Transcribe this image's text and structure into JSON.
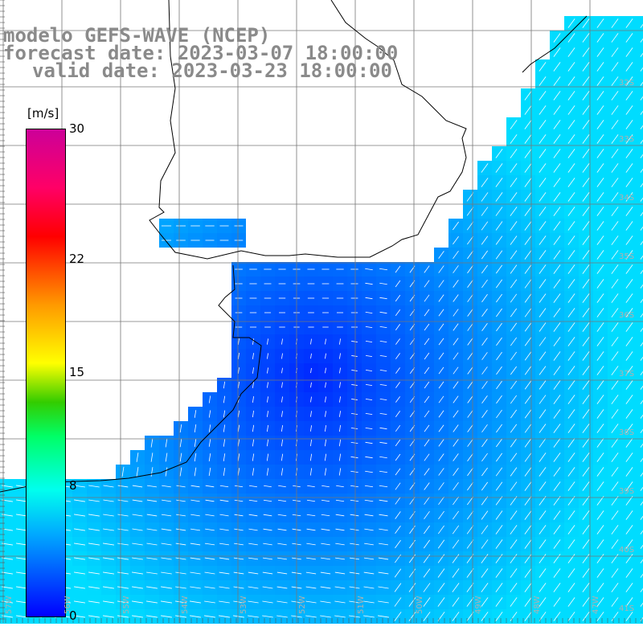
{
  "title": {
    "line1": "modelo GEFS-WAVE (NCEP)",
    "line2": "forecast date: 2023-03-07 18:00:00",
    "line3": "valid date: 2023-03-23 18:00:00"
  },
  "colorbar": {
    "unit": "[m/s]",
    "min": 0,
    "max": 30,
    "ticks": [
      {
        "value": 0,
        "label": "0"
      },
      {
        "value": 8,
        "label": "8"
      },
      {
        "value": 15,
        "label": "15"
      },
      {
        "value": 22,
        "label": "22"
      },
      {
        "value": 30,
        "label": "30"
      }
    ]
  },
  "map_labels": {
    "longitudes": [
      "57W",
      "56W",
      "55W",
      "54W",
      "53W",
      "52W",
      "51W",
      "50W",
      "49W",
      "48W",
      "47W"
    ],
    "latitudes": [
      "32S",
      "33S",
      "34S",
      "35S",
      "36S",
      "37S",
      "38S",
      "39S",
      "40S",
      "41S"
    ]
  },
  "colors": {
    "land": "#ffffff",
    "grid": "#777777",
    "coast": "#000000",
    "arrow": "#ffffff"
  }
}
